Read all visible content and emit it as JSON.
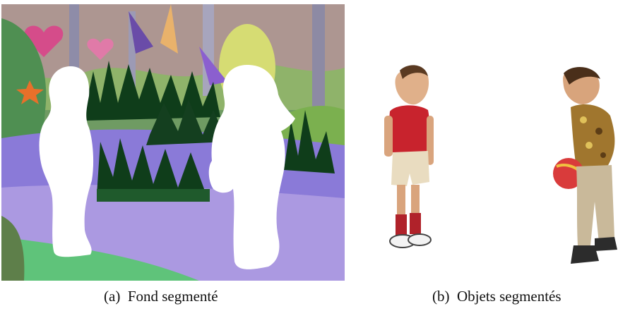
{
  "figure": {
    "captions": {
      "a": {
        "label": "(a)",
        "text": "Fond segmenté"
      },
      "b": {
        "label": "(b)",
        "text": "Objets segmentés"
      }
    }
  },
  "colors": {
    "ground_purple": "#8a7ad8",
    "ground_lilac": "#b9a6e6",
    "grass_green": "#5fc37a",
    "bush_dark": "#0f3d1a",
    "shirt_red": "#c8232d",
    "shorts_khaki": "#e9dcc0",
    "ball_red": "#d93b3b"
  }
}
